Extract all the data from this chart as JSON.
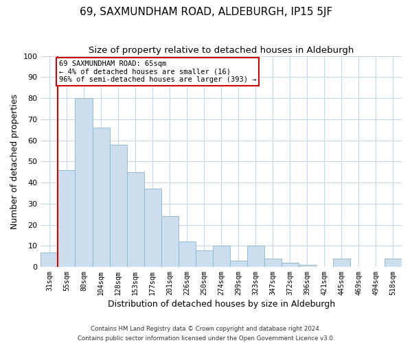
{
  "title": "69, SAXMUNDHAM ROAD, ALDEBURGH, IP15 5JF",
  "subtitle": "Size of property relative to detached houses in Aldeburgh",
  "xlabel": "Distribution of detached houses by size in Aldeburgh",
  "ylabel": "Number of detached properties",
  "bar_color": "#ccdded",
  "bar_edge_color": "#8ab4cc",
  "bins": [
    "31sqm",
    "55sqm",
    "80sqm",
    "104sqm",
    "128sqm",
    "153sqm",
    "177sqm",
    "201sqm",
    "226sqm",
    "250sqm",
    "274sqm",
    "299sqm",
    "323sqm",
    "347sqm",
    "372sqm",
    "396sqm",
    "421sqm",
    "445sqm",
    "469sqm",
    "494sqm",
    "518sqm"
  ],
  "values": [
    7,
    46,
    80,
    66,
    58,
    45,
    37,
    24,
    12,
    8,
    10,
    3,
    10,
    4,
    2,
    1,
    0,
    4,
    0,
    0,
    4
  ],
  "property_line_x": 1.5,
  "property_line_color": "#cc0000",
  "annotation_line1": "69 SAXMUNDHAM ROAD: 65sqm",
  "annotation_line2": "← 4% of detached houses are smaller (16)",
  "annotation_line3": "96% of semi-detached houses are larger (393) →",
  "annotation_box_color": "white",
  "annotation_box_edge_color": "#cc0000",
  "ylim": [
    0,
    100
  ],
  "yticks": [
    0,
    10,
    20,
    30,
    40,
    50,
    60,
    70,
    80,
    90,
    100
  ],
  "footer_line1": "Contains HM Land Registry data © Crown copyright and database right 2024.",
  "footer_line2": "Contains public sector information licensed under the Open Government Licence v3.0.",
  "figsize": [
    6.0,
    5.0
  ],
  "dpi": 100
}
